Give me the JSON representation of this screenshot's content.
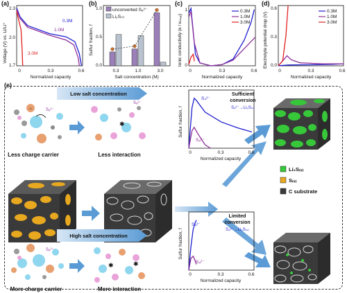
{
  "panels": {
    "a": {
      "letter": "(a)",
      "ylabel": "Voltage (V) vs. Li/Li⁺",
      "xlabel": "Normalized capacity",
      "yticks": [
        "2.3",
        "2.0",
        "1.7"
      ],
      "xticks": [
        "0",
        "0.3",
        "0.6"
      ],
      "labels": [
        "0.3M",
        "1.0M",
        "3.0M"
      ]
    },
    "b": {
      "letter": "(b)",
      "ylabel": "Sulfur fraction, f",
      "xlabel": "Salt concentration (M)",
      "yticks": [
        "1.0",
        "0.5",
        "0.0"
      ],
      "xticks": [
        "0.3",
        "1.0",
        "3.0"
      ],
      "legend": [
        "unconverted S₈²⁻",
        "Li₂S₍ₛ₎"
      ]
    },
    "c": {
      "letter": "(c)",
      "ylabel": "Ionic conductivity (κ / κₘₐₓ)",
      "xlabel": "Normalized capacity",
      "yticks": [
        "1",
        "0"
      ],
      "xticks": [
        "0",
        "0.3",
        "0.6"
      ],
      "legend": [
        "0.3M",
        "1.0M",
        "3.0M"
      ]
    },
    "d": {
      "letter": "(d)",
      "ylabel": "Electrolyte potential drop (V)",
      "xlabel": "Normalized capacity",
      "yticks": [
        "0.6",
        "0.3",
        "0.0"
      ],
      "xticks": [
        "0",
        "0.3",
        "0.6"
      ],
      "legend": [
        "0.3M",
        "1.0M",
        "3.0M"
      ]
    },
    "e": {
      "letter": "(e)",
      "low_salt": "Low salt concentration",
      "high_salt": "High salt concentration",
      "less_carrier": "Less charge carrier",
      "less_interaction": "Less interaction",
      "more_carrier": "More charge carrier",
      "more_interaction": "More interaction",
      "s82": "S₈²⁻",
      "top_plot": {
        "ylabel": "Sulfur fraction, f",
        "xlabel": "Normalized capacity",
        "xticks": [
          "0",
          "0.3",
          "0.6"
        ],
        "title1": "Sufficient",
        "title2": "conversion",
        "reaction": "S₄²⁻→Li₂S₍ₛ₎",
        "s42": "S₄²⁻",
        "s82": "S₈²⁻"
      },
      "bottom_plot": {
        "ylabel": "Sulfur fraction, f",
        "xlabel": "Normalized capacity",
        "xticks": [
          "0",
          "0.3",
          "0.6"
        ],
        "title1": "Limited",
        "title2": "conversion",
        "reaction": "S₄²⁻→Li₂S₍ₛ₎",
        "s42": "S₄²⁻",
        "s82": "S₈²⁻"
      },
      "legend": [
        "Li₂S₍ₛ₎",
        "S₍ₛ₎",
        "C substrate"
      ]
    }
  },
  "colors": {
    "blue": "#1f1fd0",
    "purple": "#8e2f9a",
    "red": "#e0201f",
    "green": "#37c83a",
    "gold": "#e8a81f",
    "dark": "#3a3a3a",
    "arrow": "#5b9bd5"
  },
  "chart_data": [
    {
      "type": "line",
      "id": "a",
      "xlim": [
        0,
        0.6
      ],
      "ylim": [
        1.7,
        2.45
      ],
      "series": [
        {
          "name": "0.3M",
          "points": [
            [
              0,
              2.42
            ],
            [
              0.03,
              2.31
            ],
            [
              0.1,
              2.2
            ],
            [
              0.3,
              2.1
            ],
            [
              0.45,
              2.06
            ],
            [
              0.53,
              2.0
            ],
            [
              0.57,
              1.85
            ],
            [
              0.59,
              1.7
            ]
          ]
        },
        {
          "name": "1.0M",
          "points": [
            [
              0,
              2.4
            ],
            [
              0.03,
              2.29
            ],
            [
              0.1,
              2.18
            ],
            [
              0.3,
              2.08
            ],
            [
              0.45,
              2.02
            ],
            [
              0.52,
              1.96
            ],
            [
              0.56,
              1.8
            ],
            [
              0.57,
              1.7
            ]
          ]
        },
        {
          "name": "3.0M",
          "points": [
            [
              0,
              2.38
            ],
            [
              0.02,
              2.26
            ],
            [
              0.04,
              2.15
            ],
            [
              0.05,
              1.9
            ],
            [
              0.055,
              1.7
            ]
          ]
        }
      ]
    },
    {
      "type": "bar",
      "id": "b",
      "categories": [
        "0.3",
        "1.0",
        "3.0"
      ],
      "ylim": [
        0,
        1.0
      ],
      "series": [
        {
          "name": "unconverted S₈²⁻",
          "values": [
            0.23,
            0.28,
            0.88
          ]
        },
        {
          "name": "Li₂S₍ₛ₎",
          "values": [
            0.52,
            0.5,
            0.06
          ]
        }
      ]
    },
    {
      "type": "line",
      "id": "c",
      "xlim": [
        0,
        0.6
      ],
      "ylim": [
        0,
        1.05
      ],
      "series": [
        {
          "name": "0.3M",
          "points": [
            [
              0,
              0.92
            ],
            [
              0.02,
              1.0
            ],
            [
              0.04,
              0.6
            ],
            [
              0.06,
              0.2
            ],
            [
              0.1,
              0.05
            ],
            [
              0.2,
              0.0
            ],
            [
              0.3,
              0.02
            ],
            [
              0.4,
              0.12
            ],
            [
              0.5,
              0.45
            ],
            [
              0.56,
              0.75
            ],
            [
              0.59,
              0.98
            ]
          ]
        },
        {
          "name": "1.0M",
          "points": [
            [
              0,
              0.85
            ],
            [
              0.02,
              0.95
            ],
            [
              0.05,
              0.4
            ],
            [
              0.1,
              0.05
            ],
            [
              0.2,
              0.0
            ],
            [
              0.3,
              0.02
            ],
            [
              0.4,
              0.1
            ],
            [
              0.5,
              0.3
            ],
            [
              0.6,
              0.5
            ]
          ]
        },
        {
          "name": "3.0M",
          "points": [
            [
              0,
              0.02
            ],
            [
              0.02,
              0.15
            ],
            [
              0.04,
              0.2
            ],
            [
              0.05,
              0.08
            ]
          ]
        }
      ]
    },
    {
      "type": "line",
      "id": "d",
      "xlim": [
        0,
        0.6
      ],
      "ylim": [
        0,
        0.6
      ],
      "series": [
        {
          "name": "0.3M",
          "points": [
            [
              0,
              0.0
            ],
            [
              0.05,
              0.005
            ],
            [
              0.1,
              0.008
            ],
            [
              0.3,
              0.01
            ],
            [
              0.5,
              0.015
            ],
            [
              0.6,
              0.02
            ]
          ]
        },
        {
          "name": "1.0M",
          "points": [
            [
              0,
              0.0
            ],
            [
              0.05,
              0.06
            ],
            [
              0.08,
              0.1
            ],
            [
              0.12,
              0.06
            ],
            [
              0.2,
              0.03
            ],
            [
              0.4,
              0.02
            ],
            [
              0.6,
              0.02
            ]
          ]
        },
        {
          "name": "3.0M",
          "points": [
            [
              0,
              0.0
            ],
            [
              0.04,
              0.05
            ],
            [
              0.07,
              0.3
            ],
            [
              0.09,
              0.6
            ]
          ]
        }
      ]
    },
    {
      "type": "line",
      "id": "e-top",
      "xlim": [
        0,
        0.6
      ],
      "ylim": [
        0,
        1
      ],
      "series": [
        {
          "name": "S₄²⁻",
          "points": [
            [
              0,
              0
            ],
            [
              0.03,
              0.7
            ],
            [
              0.05,
              0.86
            ],
            [
              0.07,
              0.82
            ],
            [
              0.15,
              0.62
            ],
            [
              0.3,
              0.45
            ],
            [
              0.45,
              0.35
            ],
            [
              0.58,
              0.28
            ]
          ]
        },
        {
          "name": "S₈²⁻",
          "points": [
            [
              0,
              0
            ],
            [
              0.03,
              0.3
            ],
            [
              0.05,
              0.36
            ],
            [
              0.08,
              0.26
            ],
            [
              0.15,
              0.06
            ],
            [
              0.2,
              0.0
            ]
          ]
        }
      ]
    },
    {
      "type": "line",
      "id": "e-bottom",
      "xlim": [
        0,
        0.6
      ],
      "ylim": [
        0,
        1
      ],
      "series": [
        {
          "name": "S₄²⁻",
          "points": [
            [
              0,
              0
            ],
            [
              0.02,
              0.4
            ],
            [
              0.04,
              0.7
            ],
            [
              0.06,
              0.82
            ],
            [
              0.07,
              0.86
            ]
          ]
        },
        {
          "name": "S₈²⁻",
          "points": [
            [
              0,
              0
            ],
            [
              0.02,
              0.2
            ],
            [
              0.04,
              0.24
            ],
            [
              0.055,
              0.18
            ],
            [
              0.07,
              0.1
            ]
          ]
        }
      ]
    }
  ]
}
